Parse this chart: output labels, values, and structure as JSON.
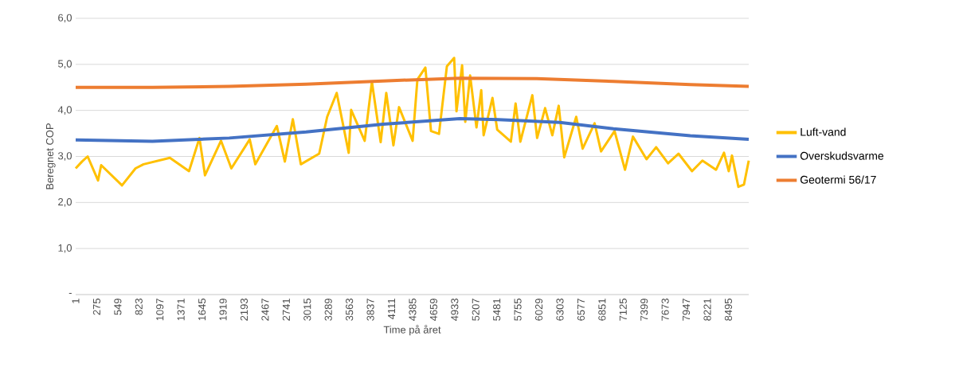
{
  "chart_data": {
    "type": "line",
    "xlabel": "Time på året",
    "ylabel": "Beregnet COP",
    "xlim": [
      1,
      8760
    ],
    "xticks": [
      1,
      275,
      549,
      823,
      1097,
      1371,
      1645,
      1919,
      2193,
      2467,
      2741,
      3015,
      3289,
      3563,
      3837,
      4111,
      4385,
      4659,
      4933,
      5207,
      5481,
      5755,
      6029,
      6303,
      6577,
      6851,
      7125,
      7399,
      7673,
      7947,
      8221,
      8495
    ],
    "ylim": [
      0,
      6
    ],
    "yticks": [
      {
        "value": 0,
        "label": "-"
      },
      {
        "value": 1,
        "label": "1,0"
      },
      {
        "value": 2,
        "label": "2,0"
      },
      {
        "value": 3,
        "label": "3,0"
      },
      {
        "value": 4,
        "label": "4,0"
      },
      {
        "value": 5,
        "label": "5,0"
      },
      {
        "value": 6,
        "label": "6,0"
      }
    ],
    "grid": "y",
    "legend": "right",
    "marker": "none",
    "line_style": "solid",
    "series": [
      {
        "name": "Luft-vand",
        "color": "#ffc000",
        "x": [
          1,
          84,
          157,
          292,
          333,
          604,
          780,
          884,
          1227,
          1476,
          1612,
          1684,
          1892,
          2027,
          2266,
          2339,
          2619,
          2723,
          2827,
          2931,
          3170,
          3274,
          3398,
          3554,
          3586,
          3762,
          3856,
          3970,
          4043,
          4136,
          4209,
          4386,
          4448,
          4552,
          4625,
          4729,
          4832,
          4926,
          4957,
          5030,
          5071,
          5134,
          5217,
          5279,
          5310,
          5425,
          5487,
          5664,
          5726,
          5788,
          5944,
          6006,
          6110,
          6204,
          6287,
          6359,
          6515,
          6599,
          6754,
          6838,
          7014,
          7150,
          7253,
          7430,
          7555,
          7710,
          7846,
          8022,
          8157,
          8334,
          8438,
          8500,
          8542,
          8625,
          8698,
          8760
        ],
        "values": [
          2.74,
          2.89,
          3.0,
          2.48,
          2.81,
          2.37,
          2.74,
          2.83,
          2.97,
          2.68,
          3.4,
          2.59,
          3.34,
          2.74,
          3.37,
          2.83,
          3.66,
          2.89,
          3.81,
          2.83,
          3.06,
          3.86,
          4.38,
          3.08,
          4.01,
          3.34,
          4.62,
          3.31,
          4.38,
          3.24,
          4.07,
          3.34,
          4.67,
          4.93,
          3.55,
          3.49,
          4.96,
          5.14,
          3.98,
          4.98,
          3.75,
          4.76,
          3.63,
          4.44,
          3.46,
          4.27,
          3.58,
          3.32,
          4.15,
          3.32,
          4.33,
          3.4,
          4.05,
          3.46,
          4.1,
          2.98,
          3.86,
          3.17,
          3.72,
          3.11,
          3.55,
          2.71,
          3.43,
          2.94,
          3.2,
          2.85,
          3.06,
          2.68,
          2.91,
          2.71,
          3.08,
          2.68,
          3.02,
          2.34,
          2.39,
          2.91
        ]
      },
      {
        "name": "Overskudsvarme",
        "color": "#4472c4",
        "x": [
          1,
          1000,
          2000,
          3000,
          4000,
          5000,
          5500,
          6300,
          7000,
          8000,
          8760
        ],
        "values": [
          3.36,
          3.33,
          3.4,
          3.53,
          3.7,
          3.82,
          3.8,
          3.74,
          3.6,
          3.45,
          3.37
        ]
      },
      {
        "name": "Geotermi 56/17",
        "color": "#ed7d31",
        "x": [
          1,
          1000,
          2000,
          3000,
          4000,
          5000,
          6000,
          7000,
          8000,
          8760
        ],
        "values": [
          4.5,
          4.5,
          4.52,
          4.57,
          4.64,
          4.7,
          4.69,
          4.63,
          4.56,
          4.52
        ]
      }
    ]
  }
}
